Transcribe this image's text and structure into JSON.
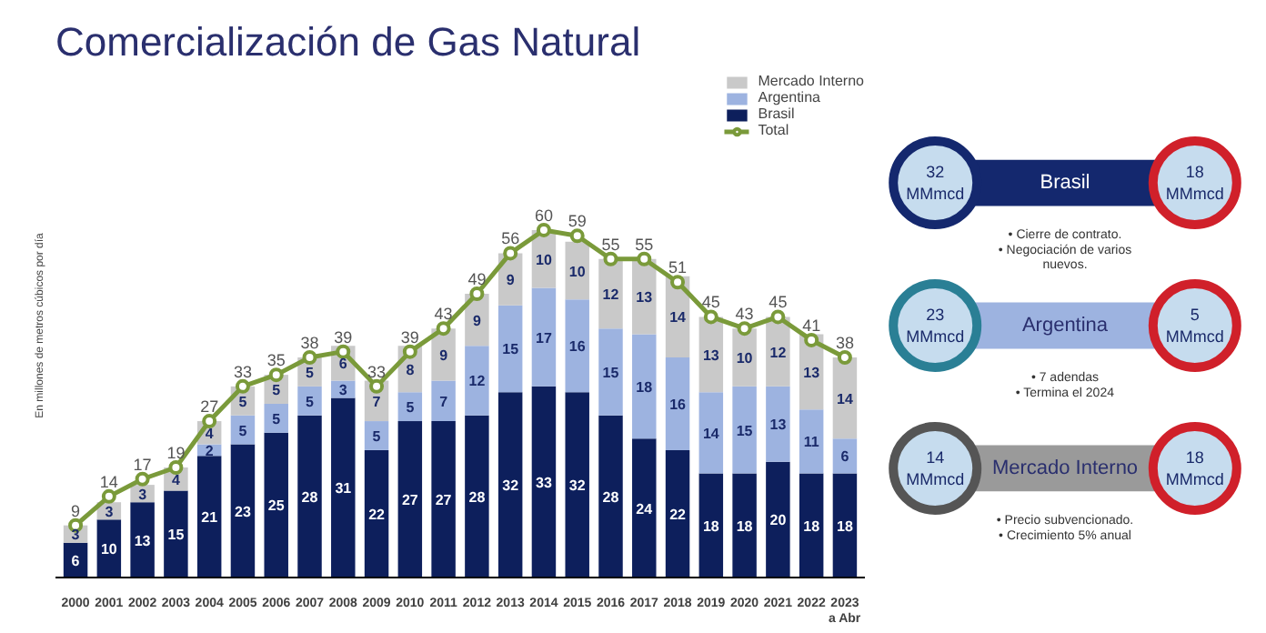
{
  "chart_data": [
    {
      "type": "bar",
      "title": "Comercialización de Gas Natural",
      "ylabel": "En millones de metros cúbicos por día",
      "stacked": true,
      "data_labels": true,
      "legend": "top right",
      "grid": false,
      "tick_labels": "x",
      "categories": [
        "2000",
        "2001",
        "2002",
        "2003",
        "2004",
        "2005",
        "2006",
        "2007",
        "2008",
        "2009",
        "2010",
        "2011",
        "2012",
        "2013",
        "2014",
        "2015",
        "2016",
        "2017",
        "2018",
        "2019",
        "2020",
        "2021",
        "2022",
        "2023\na Abr"
      ],
      "series": [
        {
          "name": "Brasil",
          "color": "#0d1f5c",
          "values": [
            6,
            10,
            13,
            15,
            21,
            23,
            25,
            28,
            31,
            22,
            27,
            27,
            28,
            32,
            33,
            32,
            28,
            24,
            22,
            18,
            18,
            20,
            18,
            18
          ]
        },
        {
          "name": "Argentina",
          "color": "#9db3e0",
          "values": [
            null,
            null,
            null,
            null,
            2,
            5,
            5,
            5,
            3,
            5,
            5,
            7,
            12,
            15,
            17,
            16,
            15,
            18,
            16,
            14,
            15,
            13,
            11,
            6
          ]
        },
        {
          "name": "Mercado Interno",
          "color": "#c9c9c9",
          "values": [
            3,
            3,
            3,
            4,
            4,
            5,
            5,
            5,
            6,
            7,
            8,
            9,
            9,
            9,
            10,
            10,
            12,
            13,
            14,
            13,
            10,
            12,
            13,
            14
          ]
        },
        {
          "name": "Total",
          "type": "line",
          "color": "#7a9a3a",
          "marker": "circle",
          "values": [
            9,
            14,
            17,
            19,
            27,
            33,
            35,
            38,
            39,
            33,
            39,
            43,
            49,
            56,
            60,
            59,
            55,
            55,
            51,
            45,
            43,
            45,
            41,
            38
          ]
        }
      ]
    },
    {
      "type": "other",
      "annotations": [
        "Brasil",
        "32\nMMmcd",
        "18\nMMmcd",
        "• Cierre de contrato.\n• Negociación de varios\nnuevos.",
        "Argentina",
        "23\nMMmcd",
        "5\nMMmcd",
        "• 7 adendas\n• Termina el 2024",
        "Mercado Interno",
        "14\nMMmcd",
        "18\nMMmcd",
        "• Precio subvencionado.\n• Crecimiento 5% anual"
      ]
    }
  ]
}
